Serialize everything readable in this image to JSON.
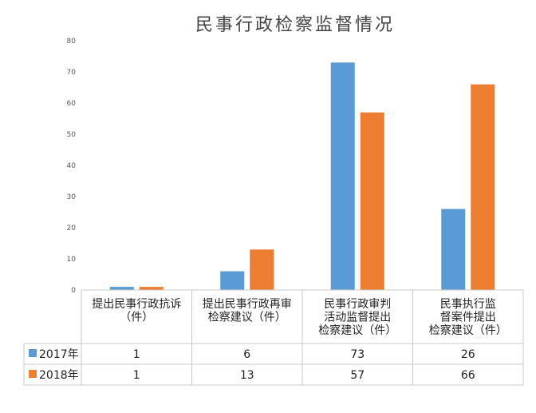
{
  "chart_data": {
    "type": "bar",
    "title": "民事行政检察监督情况",
    "categories": [
      [
        "提出民事行政抗诉",
        "（件）"
      ],
      [
        "提出民事行政再审",
        "检察建议（件）"
      ],
      [
        "民事行政审判",
        "活动监督提出",
        "检察建议（件）"
      ],
      [
        "民事执行监",
        "督案件提出",
        "检察建议（件）"
      ]
    ],
    "series": [
      {
        "name": "2017年",
        "color": "#5b9bd5",
        "values": [
          1,
          6,
          73,
          26
        ]
      },
      {
        "name": "2018年",
        "color": "#ed7d31",
        "values": [
          1,
          13,
          57,
          66
        ]
      }
    ],
    "ylim": [
      0,
      80
    ],
    "yticks": [
      0,
      10,
      20,
      30,
      40,
      50,
      60,
      70,
      80
    ],
    "grid": false,
    "legend": "data-table"
  }
}
